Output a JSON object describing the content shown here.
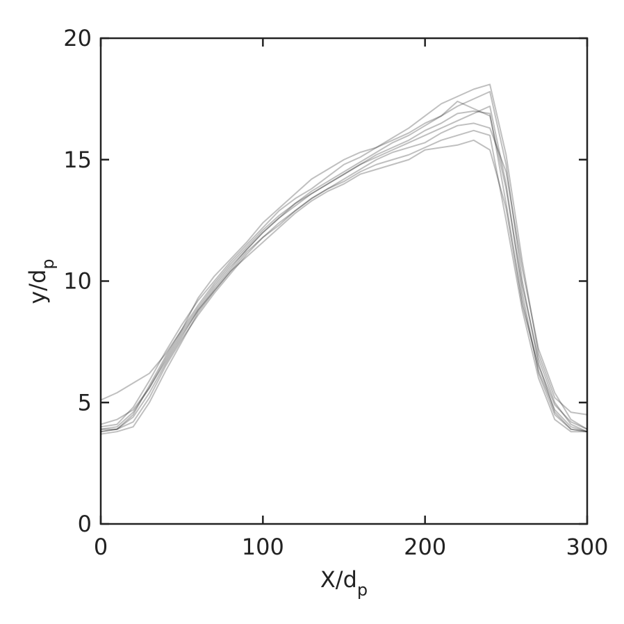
{
  "chart_data": {
    "type": "line",
    "xlabel": "X/dp",
    "ylabel": "y/dp",
    "x": [
      0,
      10,
      20,
      30,
      40,
      50,
      60,
      70,
      80,
      90,
      100,
      110,
      120,
      130,
      140,
      150,
      160,
      170,
      180,
      190,
      200,
      210,
      220,
      230,
      240,
      250,
      260,
      270,
      280,
      290,
      300
    ],
    "series": [
      {
        "color": "#000000",
        "values": [
          3.9,
          4.0,
          4.6,
          5.6,
          6.8,
          7.9,
          8.9,
          9.8,
          10.6,
          11.3,
          12.0,
          12.6,
          13.1,
          13.6,
          14.0,
          14.4,
          14.8,
          15.1,
          15.4,
          15.7,
          16.0,
          16.3,
          16.6,
          16.9,
          17.2,
          14.0,
          9.5,
          6.2,
          4.5,
          3.9,
          3.8
        ]
      },
      {
        "color": "#000000",
        "values": [
          3.8,
          3.9,
          4.2,
          5.2,
          6.5,
          7.6,
          8.6,
          9.5,
          10.3,
          11.1,
          11.8,
          12.4,
          12.9,
          13.4,
          13.8,
          14.1,
          14.5,
          14.8,
          15.0,
          15.2,
          15.5,
          15.8,
          16.0,
          16.2,
          16.0,
          12.5,
          8.8,
          6.0,
          4.3,
          3.8,
          3.8
        ]
      },
      {
        "color": "#000000",
        "values": [
          5.1,
          5.4,
          5.8,
          6.2,
          7.0,
          8.0,
          9.3,
          10.2,
          10.9,
          11.6,
          12.4,
          13.0,
          13.6,
          14.2,
          14.6,
          15.0,
          15.3,
          15.5,
          15.9,
          16.3,
          16.8,
          17.3,
          17.6,
          17.9,
          18.1,
          15.2,
          10.8,
          7.0,
          5.2,
          4.6,
          4.5
        ]
      },
      {
        "color": "#000000",
        "values": [
          3.7,
          3.8,
          4.0,
          5.0,
          6.3,
          7.5,
          8.7,
          9.6,
          10.4,
          11.0,
          11.6,
          12.2,
          12.8,
          13.3,
          13.7,
          14.0,
          14.4,
          14.6,
          14.8,
          15.0,
          15.4,
          15.5,
          15.6,
          15.8,
          15.4,
          13.0,
          9.0,
          6.5,
          4.9,
          4.2,
          3.9
        ]
      },
      {
        "color": "#000000",
        "values": [
          4.0,
          4.1,
          4.8,
          5.9,
          7.1,
          8.2,
          9.2,
          10.0,
          10.8,
          11.5,
          12.2,
          12.9,
          13.4,
          13.8,
          14.3,
          14.8,
          15.1,
          15.5,
          15.8,
          16.1,
          16.5,
          16.8,
          17.4,
          17.1,
          16.8,
          13.8,
          9.8,
          6.8,
          5.0,
          4.1,
          3.8
        ]
      },
      {
        "color": "#000000",
        "values": [
          3.9,
          3.9,
          4.4,
          5.4,
          6.6,
          7.7,
          8.8,
          9.6,
          10.4,
          11.2,
          11.8,
          12.3,
          12.9,
          13.4,
          13.8,
          14.2,
          14.6,
          15.0,
          15.3,
          15.5,
          15.7,
          16.1,
          16.4,
          16.5,
          16.3,
          14.5,
          10.5,
          7.2,
          5.4,
          4.3,
          3.9
        ]
      },
      {
        "color": "#000000",
        "values": [
          3.8,
          3.9,
          4.5,
          5.7,
          6.9,
          8.0,
          9.0,
          9.9,
          10.7,
          11.4,
          12.1,
          12.7,
          13.2,
          13.7,
          14.1,
          14.5,
          14.9,
          15.3,
          15.7,
          16.0,
          16.4,
          16.8,
          17.2,
          17.5,
          17.8,
          14.8,
          10.0,
          6.6,
          4.6,
          3.9,
          3.8
        ]
      },
      {
        "color": "#000000",
        "values": [
          4.1,
          4.3,
          4.7,
          5.6,
          6.7,
          7.8,
          8.8,
          9.7,
          10.5,
          11.3,
          12.0,
          12.6,
          13.2,
          13.6,
          14.0,
          14.4,
          14.8,
          15.2,
          15.5,
          15.8,
          16.2,
          16.5,
          16.9,
          17.0,
          16.9,
          13.2,
          9.2,
          6.3,
          4.7,
          4.0,
          3.8
        ]
      }
    ],
    "xlim": [
      0,
      300
    ],
    "xticks": [
      0,
      100,
      200,
      300
    ],
    "ylim": [
      0,
      20
    ],
    "yticks": [
      0,
      5,
      10,
      15,
      20
    ]
  }
}
